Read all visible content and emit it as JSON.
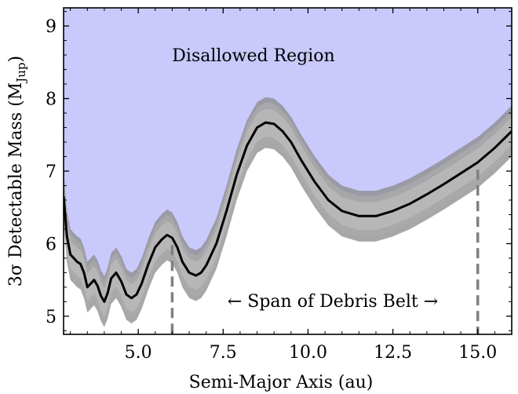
{
  "chart_data": {
    "type": "line",
    "xlabel": "Semi-Major Axis (au)",
    "ylabel": "3σ Detectable Mass (M",
    "ylabel_sub": "Jup",
    "ylabel_close": ")",
    "xlim": [
      2.8,
      16.0
    ],
    "ylim": [
      4.75,
      9.25
    ],
    "x_ticks": [
      5.0,
      7.5,
      10.0,
      12.5,
      15.0
    ],
    "x_tick_labels": [
      "5.0",
      "7.5",
      "10.0",
      "12.5",
      "15.0"
    ],
    "y_ticks": [
      5,
      6,
      7,
      8,
      9
    ],
    "y_tick_labels": [
      "5",
      "6",
      "7",
      "8",
      "9"
    ],
    "annotations": {
      "disallowed": "Disallowed Region",
      "debris_span": "← Span of Debris Belt →"
    },
    "debris_belt_edges": [
      6.0,
      15.0
    ],
    "band_halfwidth": 0.35,
    "colors": {
      "disallowed_fill": "#c9c9fb",
      "curve": "#000000",
      "band": "#808080",
      "dashed": "#808080"
    },
    "series": [
      {
        "x": [
          2.8,
          2.9,
          3.0,
          3.1,
          3.2,
          3.3,
          3.4,
          3.5,
          3.6,
          3.7,
          3.8,
          3.9,
          4.0,
          4.1,
          4.2,
          4.35,
          4.5,
          4.65,
          4.8,
          4.95,
          5.1,
          5.3,
          5.5,
          5.7,
          5.85,
          6.0,
          6.15,
          6.3,
          6.5,
          6.7,
          6.85,
          7.0,
          7.3,
          7.6,
          7.9,
          8.2,
          8.5,
          8.75,
          9.0,
          9.25,
          9.5,
          9.8,
          10.2,
          10.6,
          11.0,
          11.5,
          12.0,
          12.5,
          13.0,
          13.5,
          14.0,
          14.5,
          15.0,
          15.5,
          16.0
        ],
        "y": [
          6.65,
          6.1,
          5.85,
          5.8,
          5.75,
          5.72,
          5.6,
          5.4,
          5.45,
          5.5,
          5.42,
          5.28,
          5.2,
          5.32,
          5.52,
          5.6,
          5.48,
          5.3,
          5.25,
          5.3,
          5.45,
          5.72,
          5.95,
          6.06,
          6.12,
          6.08,
          5.95,
          5.75,
          5.6,
          5.56,
          5.6,
          5.7,
          6.0,
          6.45,
          6.95,
          7.35,
          7.6,
          7.67,
          7.65,
          7.55,
          7.4,
          7.15,
          6.85,
          6.6,
          6.45,
          6.38,
          6.38,
          6.45,
          6.55,
          6.68,
          6.82,
          6.97,
          7.12,
          7.32,
          7.55
        ]
      }
    ]
  }
}
